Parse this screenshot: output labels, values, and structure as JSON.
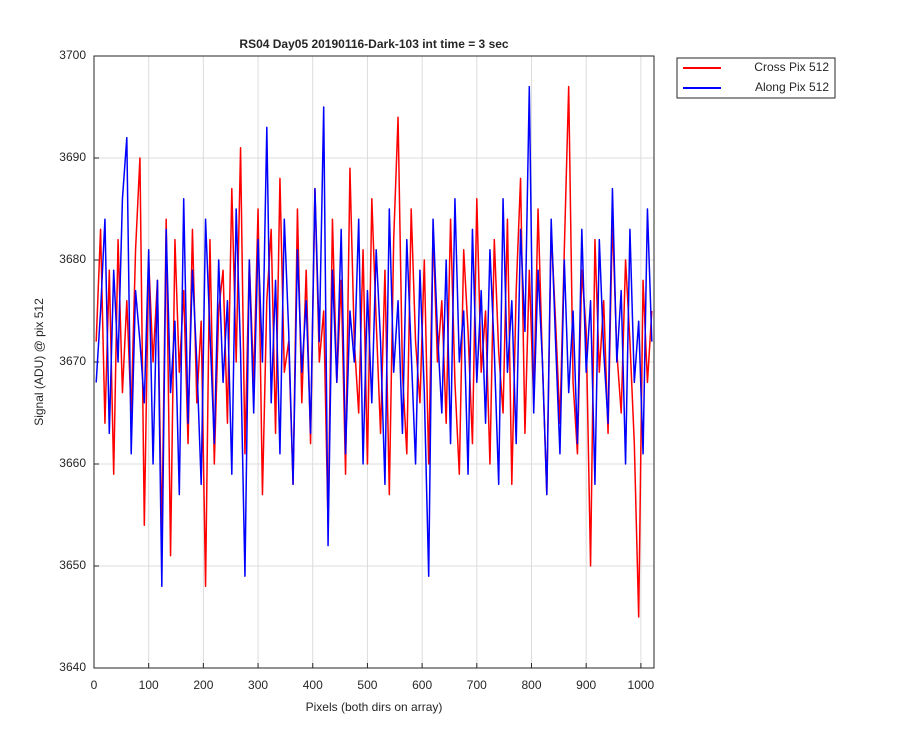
{
  "chart_data": {
    "type": "line",
    "title": "RS04 Day05 20190116-Dark-103 int time = 3 sec",
    "x_label": "Pixels (both dirs on array)",
    "y_label": "Signal (ADU) @ pix 512",
    "xlim": [
      0,
      1024
    ],
    "ylim": [
      3640,
      3700
    ],
    "xticks": [
      0,
      100,
      200,
      300,
      400,
      500,
      600,
      700,
      800,
      900,
      1000
    ],
    "yticks": [
      3640,
      3650,
      3660,
      3670,
      3680,
      3690,
      3700
    ],
    "grid": true,
    "legend_position": "outside-top-right",
    "x": [
      4,
      12,
      20,
      28,
      36,
      44,
      52,
      60,
      68,
      76,
      84,
      92,
      100,
      108,
      116,
      124,
      132,
      140,
      148,
      156,
      164,
      172,
      180,
      188,
      196,
      204,
      212,
      220,
      228,
      236,
      244,
      252,
      260,
      268,
      276,
      284,
      292,
      300,
      308,
      316,
      324,
      332,
      340,
      348,
      356,
      364,
      372,
      380,
      388,
      396,
      404,
      412,
      420,
      428,
      436,
      444,
      452,
      460,
      468,
      476,
      484,
      492,
      500,
      508,
      516,
      524,
      532,
      540,
      548,
      556,
      564,
      572,
      580,
      588,
      596,
      604,
      612,
      620,
      628,
      636,
      644,
      652,
      660,
      668,
      676,
      684,
      692,
      700,
      708,
      716,
      724,
      732,
      740,
      748,
      756,
      764,
      772,
      780,
      788,
      796,
      804,
      812,
      820,
      828,
      836,
      844,
      852,
      860,
      868,
      876,
      884,
      892,
      900,
      908,
      916,
      924,
      932,
      940,
      948,
      956,
      964,
      972,
      980,
      988,
      996,
      1004,
      1012,
      1020
    ],
    "series": [
      {
        "name": "Cross Pix 512",
        "color": "#ff0000",
        "values": [
          3672,
          3683,
          3664,
          3679,
          3659,
          3682,
          3667,
          3676,
          3665,
          3681,
          3690,
          3654,
          3680,
          3670,
          3678,
          3653,
          3684,
          3651,
          3682,
          3669,
          3677,
          3662,
          3683,
          3666,
          3674,
          3648,
          3682,
          3660,
          3675,
          3679,
          3664,
          3687,
          3670,
          3691,
          3661,
          3680,
          3668,
          3685,
          3657,
          3676,
          3683,
          3663,
          3688,
          3669,
          3672,
          3658,
          3685,
          3666,
          3679,
          3662,
          3687,
          3670,
          3675,
          3654,
          3684,
          3668,
          3678,
          3659,
          3689,
          3672,
          3665,
          3681,
          3660,
          3686,
          3674,
          3663,
          3679,
          3657,
          3682,
          3694,
          3669,
          3661,
          3685,
          3672,
          3666,
          3680,
          3660,
          3683,
          3670,
          3676,
          3664,
          3684,
          3668,
          3659,
          3681,
          3673,
          3662,
          3686,
          3669,
          3675,
          3660,
          3682,
          3671,
          3665,
          3684,
          3658,
          3677,
          3688,
          3663,
          3679,
          3666,
          3685,
          3670,
          3657,
          3683,
          3674,
          3664,
          3681,
          3697,
          3668,
          3661,
          3679,
          3673,
          3650,
          3682,
          3669,
          3676,
          3663,
          3684,
          3671,
          3665,
          3680,
          3672,
          3662,
          3645,
          3678,
          3668,
          3675
        ]
      },
      {
        "name": "Along Pix 512",
        "color": "#0000ff",
        "values": [
          3668,
          3675,
          3684,
          3663,
          3679,
          3670,
          3686,
          3692,
          3661,
          3677,
          3672,
          3666,
          3681,
          3660,
          3678,
          3648,
          3683,
          3667,
          3674,
          3657,
          3686,
          3664,
          3679,
          3670,
          3658,
          3684,
          3673,
          3662,
          3680,
          3668,
          3676,
          3659,
          3685,
          3671,
          3649,
          3680,
          3665,
          3682,
          3670,
          3693,
          3666,
          3678,
          3661,
          3684,
          3673,
          3658,
          3681,
          3669,
          3676,
          3663,
          3687,
          3672,
          3695,
          3652,
          3679,
          3668,
          3683,
          3661,
          3675,
          3670,
          3684,
          3660,
          3677,
          3666,
          3681,
          3672,
          3658,
          3685,
          3669,
          3676,
          3663,
          3682,
          3671,
          3660,
          3679,
          3667,
          3649,
          3684,
          3673,
          3665,
          3680,
          3662,
          3686,
          3670,
          3675,
          3659,
          3683,
          3668,
          3677,
          3664,
          3681,
          3671,
          3658,
          3686,
          3669,
          3676,
          3662,
          3683,
          3673,
          3697,
          3665,
          3679,
          3670,
          3657,
          3684,
          3672,
          3661,
          3680,
          3667,
          3675,
          3662,
          3683,
          3669,
          3676,
          3658,
          3682,
          3671,
          3664,
          3687,
          3670,
          3677,
          3660,
          3683,
          3668,
          3674,
          3661,
          3685,
          3672
        ]
      }
    ]
  }
}
